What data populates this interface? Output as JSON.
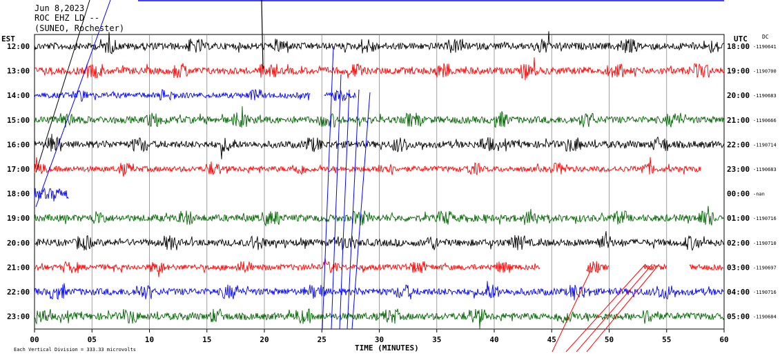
{
  "header": {
    "date": "Jun 8,2023",
    "station": "ROC EHZ LD --",
    "network": "(SUNEO, Rochester)"
  },
  "left_zone": "EST",
  "right_zone": "UTC",
  "dc_label": "DC",
  "footer": {
    "scale": "Each Vertical Division =  333.33 microvolts",
    "xlabel": "TIME (MINUTES)"
  },
  "chart_data": {
    "type": "line",
    "title": "",
    "xlabel": "TIME (MINUTES)",
    "xlim": [
      0,
      60
    ],
    "x_ticks": [
      "00",
      "05",
      "10",
      "15",
      "20",
      "25",
      "30",
      "35",
      "40",
      "45",
      "50",
      "55",
      "60"
    ],
    "grid": true,
    "series": [
      {
        "est": "12:00",
        "utc": "18:00",
        "dc": "-1190641",
        "color": "#000000",
        "amp": 5,
        "segments": [
          [
            0,
            60
          ]
        ]
      },
      {
        "est": "13:00",
        "utc": "19:00",
        "dc": "-1190700",
        "color": "#ff0000",
        "amp": 5,
        "segments": [
          [
            0,
            60
          ]
        ]
      },
      {
        "est": "14:00",
        "utc": "20:00",
        "dc": "-1190683",
        "color": "#0000ff",
        "amp": 4,
        "segments": [
          [
            0,
            24
          ],
          [
            25.2,
            28
          ]
        ]
      },
      {
        "est": "15:00",
        "utc": "21:00",
        "dc": "-1190666",
        "color": "#006400",
        "amp": 5,
        "segments": [
          [
            0,
            60
          ]
        ]
      },
      {
        "est": "16:00",
        "utc": "22:00",
        "dc": "-1190714",
        "color": "#000000",
        "amp": 5,
        "segments": [
          [
            0,
            60
          ]
        ]
      },
      {
        "est": "17:00",
        "utc": "23:00",
        "dc": "-1190683",
        "color": "#ff0000",
        "amp": 4,
        "segments": [
          [
            0,
            58
          ]
        ]
      },
      {
        "est": "18:00",
        "utc": "00:00",
        "dc": "-nan",
        "color": "#0000ff",
        "amp": 8,
        "segments": [
          [
            0,
            3
          ]
        ]
      },
      {
        "est": "19:00",
        "utc": "01:00",
        "dc": "-1190716",
        "color": "#006400",
        "amp": 5,
        "segments": [
          [
            0,
            60
          ]
        ]
      },
      {
        "est": "20:00",
        "utc": "02:00",
        "dc": "-1190710",
        "color": "#000000",
        "amp": 5,
        "segments": [
          [
            0,
            60
          ]
        ]
      },
      {
        "est": "21:00",
        "utc": "03:00",
        "dc": "-1190697",
        "color": "#ff0000",
        "amp": 4,
        "segments": [
          [
            0,
            44
          ],
          [
            48,
            50
          ],
          [
            53,
            55
          ],
          [
            57,
            60
          ]
        ]
      },
      {
        "est": "22:00",
        "utc": "04:00",
        "dc": "-1190716",
        "color": "#0000ff",
        "amp": 5,
        "segments": [
          [
            0,
            60
          ]
        ]
      },
      {
        "est": "23:00",
        "utc": "05:00",
        "dc": "-1190684",
        "color": "#006400",
        "amp": 5,
        "segments": [
          [
            0,
            60
          ]
        ]
      }
    ]
  }
}
